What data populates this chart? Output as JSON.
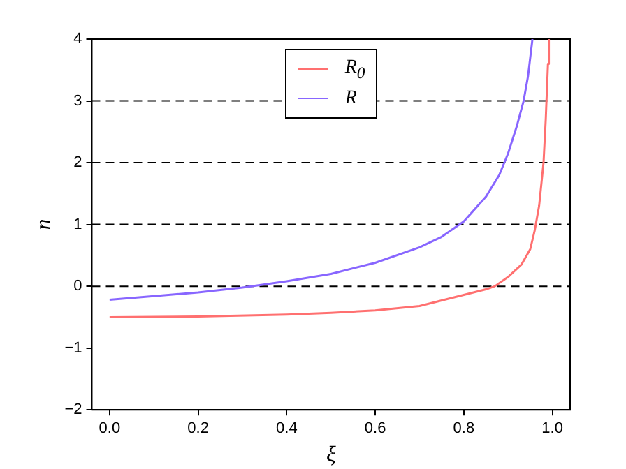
{
  "chart_data": {
    "type": "line",
    "xlabel": "ξ",
    "ylabel": "n",
    "xlim": [
      -0.04,
      1.04
    ],
    "xticks": [
      {
        "value": 0,
        "label": "0.0"
      },
      {
        "value": 0.2,
        "label": "0.2"
      },
      {
        "value": 0.4,
        "label": "0.4"
      },
      {
        "value": 0.6,
        "label": "0.6"
      },
      {
        "value": 0.8,
        "label": "0.8"
      },
      {
        "value": 1,
        "label": "1.0"
      }
    ],
    "ylim": [
      -2,
      4
    ],
    "yticks": [
      -2,
      -1,
      0,
      1,
      2,
      3,
      4
    ],
    "grid": false,
    "legend": "top",
    "marker": "none",
    "line_style": "solid",
    "ref_lines": [
      {
        "axis": "y",
        "value": 0,
        "line_style": "dashed",
        "color": "#000000"
      },
      {
        "axis": "y",
        "value": 1,
        "line_style": "dashed",
        "color": "#000000"
      },
      {
        "axis": "y",
        "value": 2,
        "line_style": "dashed",
        "color": "#000000"
      },
      {
        "axis": "y",
        "value": 3,
        "line_style": "dashed",
        "color": "#000000"
      }
    ],
    "series": [
      {
        "name": "R$_{0}$",
        "color": "#ff7070",
        "x": [
          0,
          0.2,
          0.4,
          0.5,
          0.6,
          0.7,
          0.8,
          0.85,
          0.87,
          0.9,
          0.93,
          0.95,
          0.96,
          0.97,
          0.98,
          0.985,
          0.99,
          0.992
        ],
        "values": [
          -0.5,
          -0.49,
          -0.46,
          -0.43,
          -0.39,
          -0.32,
          -0.14,
          -0.05,
          0,
          0.15,
          0.35,
          0.6,
          0.9,
          1.3,
          2.0,
          2.7,
          3.6,
          4
        ]
      },
      {
        "name": "R",
        "color": "#8866ff",
        "x": [
          0,
          0.1,
          0.2,
          0.3,
          0.4,
          0.5,
          0.6,
          0.7,
          0.75,
          0.8,
          0.85,
          0.88,
          0.9,
          0.92,
          0.935,
          0.945,
          0.955
        ],
        "values": [
          -0.22,
          -0.16,
          -0.1,
          -0.02,
          0.08,
          0.2,
          0.38,
          0.63,
          0.8,
          1.05,
          1.45,
          1.8,
          2.15,
          2.6,
          3.0,
          3.4,
          4
        ]
      }
    ]
  }
}
